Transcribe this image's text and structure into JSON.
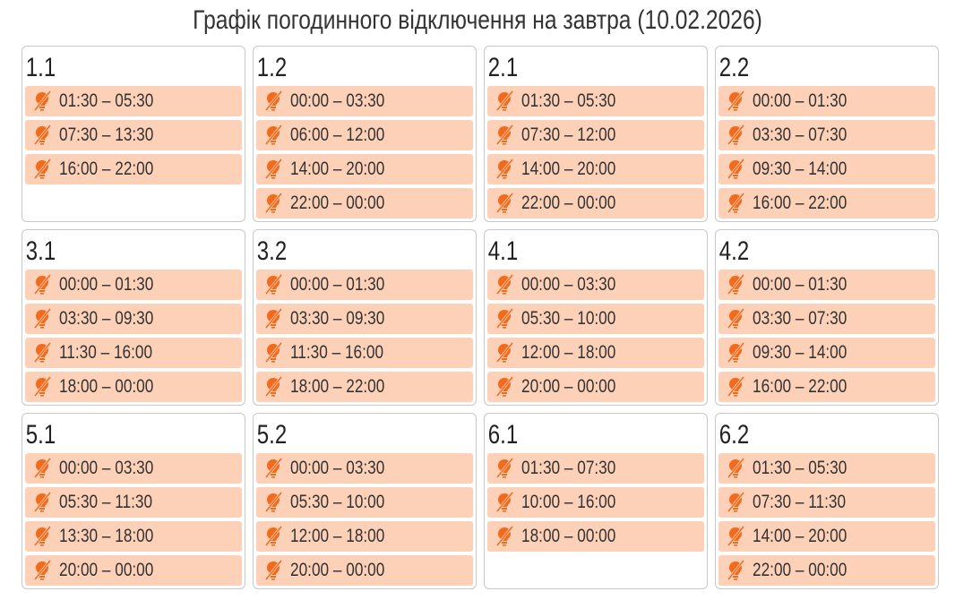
{
  "title": "Графік погодинного відключення на завтра (10.02.2026)",
  "colors": {
    "slot_bg": "#fdd0b8",
    "icon": "#f26b1d"
  },
  "slot_icon": "bulb-off-icon",
  "groups": [
    {
      "label": "1.1",
      "slots": [
        "01:30 – 05:30",
        "07:30 – 13:30",
        "16:00 – 22:00"
      ]
    },
    {
      "label": "1.2",
      "slots": [
        "00:00 – 03:30",
        "06:00 – 12:00",
        "14:00 – 20:00",
        "22:00 – 00:00"
      ]
    },
    {
      "label": "2.1",
      "slots": [
        "01:30 – 05:30",
        "07:30 – 12:00",
        "14:00 – 20:00",
        "22:00 – 00:00"
      ]
    },
    {
      "label": "2.2",
      "slots": [
        "00:00 – 01:30",
        "03:30 – 07:30",
        "09:30 – 14:00",
        "16:00 – 22:00"
      ]
    },
    {
      "label": "3.1",
      "slots": [
        "00:00 – 01:30",
        "03:30 – 09:30",
        "11:30 – 16:00",
        "18:00 – 00:00"
      ]
    },
    {
      "label": "3.2",
      "slots": [
        "00:00 – 01:30",
        "03:30 – 09:30",
        "11:30 – 16:00",
        "18:00 – 22:00"
      ]
    },
    {
      "label": "4.1",
      "slots": [
        "00:00 – 03:30",
        "05:30 – 10:00",
        "12:00 – 18:00",
        "20:00 – 00:00"
      ]
    },
    {
      "label": "4.2",
      "slots": [
        "00:00 – 01:30",
        "03:30 – 07:30",
        "09:30 – 14:00",
        "16:00 – 22:00"
      ]
    },
    {
      "label": "5.1",
      "slots": [
        "00:00 – 03:30",
        "05:30 – 11:30",
        "13:30 – 18:00",
        "20:00 – 00:00"
      ]
    },
    {
      "label": "5.2",
      "slots": [
        "00:00 – 03:30",
        "05:30 – 10:00",
        "12:00 – 18:00",
        "20:00 – 00:00"
      ]
    },
    {
      "label": "6.1",
      "slots": [
        "01:30 – 07:30",
        "10:00 – 16:00",
        "18:00 – 00:00"
      ]
    },
    {
      "label": "6.2",
      "slots": [
        "01:30 – 05:30",
        "07:30 – 11:30",
        "14:00 – 20:00",
        "22:00 – 00:00"
      ]
    }
  ]
}
